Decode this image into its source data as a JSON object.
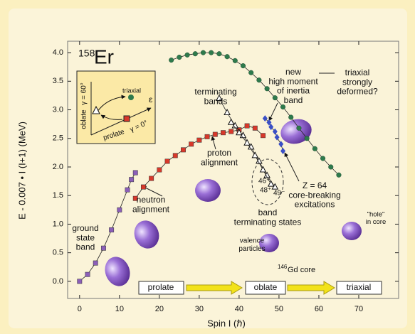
{
  "chart_data": {
    "type": "scatter",
    "x_label": "Spin I (ℏ)",
    "y_label": "E - 0.007 • I (I+1) (MeV)",
    "xlim": [
      -3,
      80
    ],
    "xticks": [
      0,
      10,
      20,
      30,
      40,
      50,
      60,
      70
    ],
    "ylim": [
      -0.3,
      4.2
    ],
    "yticks": [
      {
        "value": 0,
        "label": "0.0"
      },
      0.5,
      {
        "value": 1,
        "label": "1.0"
      },
      1.5,
      {
        "value": 2,
        "label": "2.0"
      },
      2.5,
      {
        "value": 3,
        "label": "3.0"
      },
      3.5,
      {
        "value": 4,
        "label": "4.0"
      }
    ],
    "series": [
      {
        "marker": "square",
        "color": "#8b5fb8",
        "x": [
          0,
          2,
          4,
          6,
          8,
          10,
          12,
          13,
          14
        ],
        "values": [
          0,
          0.12,
          0.32,
          0.58,
          0.9,
          1.25,
          1.6,
          1.78,
          1.9
        ]
      },
      {
        "marker": "square",
        "color": "#d8382a",
        "x": [
          14,
          16,
          18,
          20,
          22,
          24,
          26,
          28,
          30,
          32,
          34,
          36,
          38,
          40,
          42,
          44,
          46
        ],
        "values": [
          1.45,
          1.65,
          1.8,
          1.95,
          2.1,
          2.2,
          2.3,
          2.4,
          2.47,
          2.53,
          2.57,
          2.6,
          2.62,
          2.65,
          2.72,
          2.68,
          2.55
        ]
      },
      {
        "marker": "circle",
        "color": "#2e7a4c",
        "x": [
          23,
          25,
          27,
          29,
          31,
          33,
          35,
          37,
          39,
          41,
          43,
          45,
          47,
          49,
          51,
          53,
          55,
          57,
          59,
          61,
          63,
          65
        ],
        "values": [
          3.87,
          3.92,
          3.96,
          3.98,
          4.0,
          4.0,
          3.98,
          3.93,
          3.86,
          3.77,
          3.65,
          3.52,
          3.37,
          3.21,
          3.05,
          2.87,
          2.68,
          2.5,
          2.32,
          2.15,
          2.0,
          1.86
        ]
      },
      {
        "marker": "diamond",
        "color": "#3a4fc6",
        "x": [
          46.5,
          47.5,
          48,
          49,
          49.5,
          50.5,
          51
        ],
        "values": [
          2.85,
          2.78,
          2.7,
          2.62,
          2.52,
          2.4,
          2.28
        ]
      },
      {
        "marker": "triangle",
        "color": "#ffffff",
        "x": [
          35,
          37,
          39,
          41,
          43,
          45,
          47,
          49
        ],
        "values": [
          3.2,
          2.95,
          2.72,
          2.55,
          2.35,
          2.1,
          1.85,
          1.65
        ]
      },
      {
        "marker": "triangle",
        "color": "#ffffff",
        "x": [
          38,
          40,
          42,
          44,
          46,
          48
        ],
        "values": [
          2.78,
          2.6,
          2.42,
          2.2,
          1.95,
          1.7
        ]
      }
    ],
    "annotations": {
      "isotope_mass": "158",
      "isotope_symbol": "Er",
      "high_moment": [
        "new",
        "high moment",
        "of inertia",
        "band"
      ],
      "triaxial_deformed": [
        "triaxial",
        "strongly",
        "deformed?"
      ],
      "terminating_bands": [
        "terminating",
        "bands"
      ],
      "proton_alignment": [
        "proton",
        "alignment"
      ],
      "neutron_alignment": [
        "neutron",
        "alignment"
      ],
      "ground_state": [
        "ground",
        "state",
        "band"
      ],
      "band_terminating": [
        "band",
        "terminating states"
      ],
      "core_breaking": [
        "Z = 64",
        "core-breaking",
        "excitations"
      ],
      "hole": [
        "\"hole\"",
        "in core"
      ],
      "valence": [
        "valence",
        "particles"
      ],
      "gd_mass": "146",
      "gd_rest": "Gd core",
      "spin_46": "46⁺",
      "spin_48": "48⁺",
      "spin_49": "49⁻"
    },
    "shape_sequence": [
      "prolate",
      "oblate",
      "triaxial"
    ],
    "inset": {
      "y_label": "γ = 60°",
      "oblate": "oblate",
      "prolate": "prolate",
      "x_label": "γ = 0°",
      "triaxial": "triaxial",
      "epsilon": "ε"
    }
  }
}
